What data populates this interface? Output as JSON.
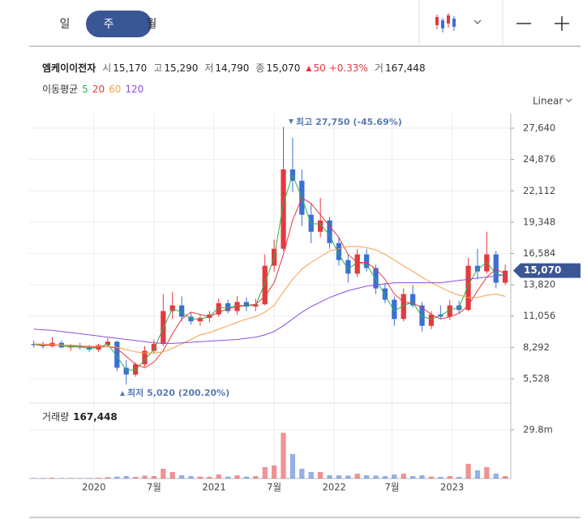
{
  "ui": {
    "tabs": [
      "일",
      "주",
      "월"
    ],
    "selected_tab": 1,
    "scale_mode": "Linear",
    "header": {
      "name": "엠케이이전자",
      "items": [
        {
          "label": "시",
          "value": "15,170"
        },
        {
          "label": "고",
          "value": "15,290"
        },
        {
          "label": "저",
          "value": "14,790"
        },
        {
          "label": "종",
          "value": "15,070"
        }
      ],
      "change": "50",
      "change_pct": "+0.33%",
      "volume_label": "거",
      "volume": "167,448"
    },
    "ma_title": "이동평균",
    "volume_title": "거래량",
    "volume_value": "167,448",
    "high_note": "최고 27,750 (-45.69%)",
    "low_note": "최저 5,020 (200.20%)"
  },
  "chart_data": {
    "type": "candlestick",
    "up_color": "#e5393e",
    "down_color": "#3b6fd6",
    "xlim": [
      0,
      208.4
    ],
    "xticks": [
      {
        "value": 28,
        "label": "2020"
      },
      {
        "value": 54,
        "label": "7월"
      },
      {
        "value": 80,
        "label": "2021"
      },
      {
        "value": 106,
        "label": "7월"
      },
      {
        "value": 132,
        "label": "2022"
      },
      {
        "value": 157,
        "label": "7월"
      },
      {
        "value": 183,
        "label": "2023"
      }
    ],
    "ylim": [
      3523,
      28930
    ],
    "yticks": [
      {
        "value": 27640,
        "label": "27,640"
      },
      {
        "value": 24876,
        "label": "24,876"
      },
      {
        "value": 22112,
        "label": "22,112"
      },
      {
        "value": 19348,
        "label": "19,348"
      },
      {
        "value": 16584,
        "label": "16,584"
      },
      {
        "value": 13820,
        "label": "13,820"
      },
      {
        "value": 11056,
        "label": "11,056"
      },
      {
        "value": 8292,
        "label": "8,292"
      },
      {
        "value": 5528,
        "label": "5,528"
      }
    ],
    "grid": true,
    "last_price": {
      "value": 15070,
      "label": "15,070"
    },
    "last_color": "#3a5795",
    "candles": {
      "x": [
        2,
        6,
        10,
        14,
        18,
        22,
        26,
        30,
        34,
        38,
        42,
        46,
        50,
        54,
        58,
        62,
        66,
        70,
        74,
        78,
        82,
        86,
        90,
        94,
        98,
        102,
        106,
        110,
        114,
        118,
        122,
        126,
        130,
        134,
        138,
        142,
        146,
        150,
        154,
        158,
        162,
        166,
        170,
        174,
        178,
        182,
        186,
        190,
        194,
        198,
        202,
        206
      ],
      "open": [
        8600,
        8500,
        8400,
        8700,
        8300,
        8400,
        8300,
        8100,
        8500,
        8800,
        6500,
        5900,
        6800,
        8000,
        8600,
        11500,
        12000,
        11000,
        10600,
        10900,
        11200,
        12200,
        11500,
        12300,
        11900,
        12100,
        15500,
        17000,
        24000,
        23000,
        20000,
        18500,
        19500,
        17500,
        16000,
        14800,
        16500,
        15300,
        13500,
        12500,
        10800,
        13000,
        12000,
        10200,
        11200,
        11000,
        12000,
        11600,
        15500,
        15000,
        16500,
        14000
      ],
      "high": [
        8900,
        8800,
        9200,
        8900,
        8600,
        8700,
        8500,
        8600,
        9100,
        8900,
        7200,
        7000,
        8400,
        9000,
        13000,
        13200,
        12800,
        11400,
        11200,
        11500,
        12600,
        12500,
        12800,
        12700,
        12600,
        16500,
        17800,
        27750,
        26800,
        24000,
        21000,
        21500,
        19800,
        18000,
        16500,
        17000,
        17000,
        15600,
        14000,
        12800,
        13500,
        13800,
        12300,
        11500,
        12000,
        12500,
        12400,
        16200,
        17000,
        18500,
        16800,
        15600
      ],
      "low": [
        8300,
        8200,
        8300,
        8200,
        8000,
        8100,
        7900,
        7900,
        8300,
        6200,
        5020,
        5700,
        6600,
        7700,
        8400,
        10800,
        10600,
        10300,
        10200,
        10500,
        11000,
        11300,
        11200,
        11500,
        11500,
        12000,
        15000,
        16800,
        22000,
        19000,
        17500,
        18000,
        17000,
        15500,
        14000,
        14500,
        15000,
        13000,
        12200,
        10200,
        10600,
        11800,
        9700,
        9900,
        10800,
        10700,
        11300,
        11500,
        14300,
        14800,
        13500,
        13800
      ],
      "close": [
        8500,
        8400,
        8700,
        8300,
        8400,
        8300,
        8100,
        8500,
        8800,
        6500,
        5900,
        6800,
        8000,
        8600,
        11500,
        12000,
        11000,
        10600,
        10900,
        11200,
        12200,
        11500,
        12300,
        11900,
        12100,
        15500,
        17000,
        24000,
        23000,
        20000,
        18500,
        19500,
        17500,
        16000,
        14800,
        16500,
        15300,
        13500,
        12500,
        10800,
        13000,
        12000,
        10200,
        11200,
        11000,
        12000,
        11600,
        15500,
        15000,
        16500,
        14000,
        15070
      ]
    },
    "series": [
      {
        "name": "5",
        "color": "#2bb24c",
        "values": [
          8550,
          8450,
          8550,
          8450,
          8350,
          8350,
          8200,
          8300,
          8600,
          7500,
          6300,
          6300,
          7200,
          8100,
          10000,
          11700,
          11400,
          10800,
          10800,
          11000,
          11800,
          11800,
          12000,
          12000,
          12000,
          14000,
          16200,
          21000,
          23500,
          21500,
          19200,
          19200,
          18200,
          16500,
          15200,
          15800,
          15600,
          14300,
          12900,
          11500,
          12000,
          12300,
          11000,
          10800,
          11100,
          11600,
          11800,
          13800,
          15200,
          15800,
          14800,
          14600
        ]
      },
      {
        "name": "20",
        "color": "#e5393e",
        "values": [
          8600,
          8500,
          8500,
          8500,
          8450,
          8400,
          8350,
          8300,
          8400,
          8200,
          7500,
          6800,
          6500,
          7000,
          8000,
          9500,
          10800,
          11400,
          11200,
          11000,
          11400,
          11700,
          11900,
          12000,
          12100,
          12800,
          14000,
          16500,
          19500,
          21500,
          21000,
          20000,
          19000,
          18000,
          16500,
          15800,
          15800,
          15200,
          14300,
          13000,
          12300,
          12200,
          11800,
          11200,
          10800,
          11000,
          11300,
          12000,
          13300,
          14500,
          15200,
          14800
        ]
      },
      {
        "name": "60",
        "color": "#f5a049",
        "values": [
          8600,
          8600,
          8550,
          8500,
          8500,
          8450,
          8400,
          8400,
          8400,
          8300,
          8100,
          7900,
          7800,
          7800,
          7900,
          8200,
          8600,
          9000,
          9400,
          9600,
          9900,
          10200,
          10500,
          10800,
          11000,
          11400,
          12000,
          13200,
          14300,
          15200,
          15800,
          16300,
          16800,
          17000,
          17200,
          17200,
          17100,
          16900,
          16500,
          16000,
          15500,
          15000,
          14500,
          14000,
          13600,
          13200,
          12900,
          12700,
          12700,
          12900,
          13000,
          12800
        ]
      },
      {
        "name": "120",
        "color": "#8a4fe0",
        "values": [
          9900,
          9850,
          9800,
          9700,
          9600,
          9500,
          9400,
          9300,
          9200,
          9100,
          9000,
          8900,
          8800,
          8700,
          8650,
          8650,
          8700,
          8750,
          8800,
          8850,
          8900,
          8950,
          9000,
          9100,
          9200,
          9400,
          9700,
          10200,
          10800,
          11400,
          11900,
          12300,
          12700,
          13000,
          13300,
          13500,
          13700,
          13800,
          13900,
          14000,
          14000,
          14000,
          14000,
          14000,
          14000,
          14100,
          14200,
          14300,
          14400,
          14500,
          14600,
          14700
        ]
      }
    ],
    "volume": {
      "ylim": [
        0,
        44.7
      ],
      "yticks": [
        {
          "value": 29.8,
          "label": "29.8m"
        }
      ],
      "values": [
        0.3,
        0.3,
        0.5,
        0.3,
        0.3,
        0.3,
        0.3,
        0.4,
        0.8,
        1.2,
        1.5,
        1.0,
        1.8,
        1.5,
        6.0,
        4.0,
        2.0,
        1.5,
        1.2,
        1.0,
        2.5,
        1.2,
        2.0,
        1.2,
        1.5,
        7.0,
        8.0,
        28.0,
        15.0,
        6.0,
        4.0,
        4.0,
        2.0,
        2.0,
        1.8,
        3.0,
        2.0,
        1.8,
        1.5,
        2.5,
        3.0,
        1.5,
        2.0,
        1.2,
        1.0,
        1.5,
        1.0,
        9.0,
        5.0,
        7.0,
        3.0,
        1.5
      ]
    }
  }
}
